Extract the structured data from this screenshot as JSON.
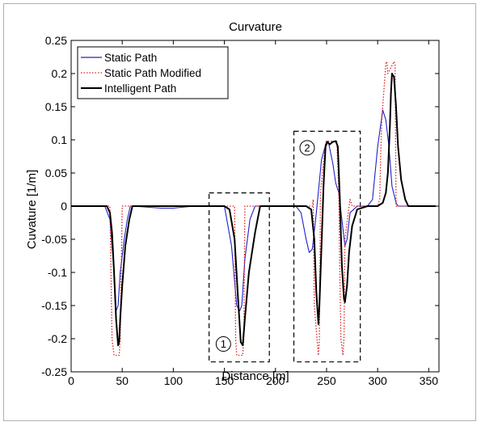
{
  "chart_data": {
    "type": "line",
    "title": "Curvature",
    "xlabel": "Distance [m]",
    "ylabel": "Cuvature [1/m]",
    "xlim": [
      0,
      360
    ],
    "ylim": [
      -0.25,
      0.25
    ],
    "xticks": [
      0,
      50,
      100,
      150,
      200,
      250,
      300,
      350
    ],
    "yticks": [
      -0.25,
      -0.2,
      -0.15,
      -0.1,
      -0.05,
      0,
      0.05,
      0.1,
      0.15,
      0.2,
      0.25
    ],
    "grid": false,
    "legend": "top-left",
    "series": [
      {
        "name": "Static Path",
        "color": "#2020c8",
        "style": "solid",
        "x": [
          0,
          10,
          33,
          38,
          42,
          44,
          46,
          48,
          52,
          55,
          58,
          60,
          88,
          100,
          120,
          130,
          150,
          157,
          162,
          165,
          167,
          170,
          175,
          180,
          200,
          220,
          225,
          230,
          233,
          236,
          240,
          245,
          250,
          252,
          256,
          259,
          262,
          265,
          268,
          270,
          273,
          280,
          290,
          295,
          300,
          305,
          308,
          311,
          314,
          318,
          320,
          325,
          350,
          357
        ],
        "y": [
          0,
          0,
          0,
          -0.02,
          -0.1,
          -0.158,
          -0.15,
          -0.1,
          -0.05,
          -0.02,
          0,
          0,
          -0.003,
          -0.003,
          0,
          0,
          0,
          -0.06,
          -0.15,
          -0.158,
          -0.15,
          -0.08,
          -0.02,
          0,
          0,
          0,
          -0.01,
          -0.05,
          -0.07,
          -0.065,
          -0.01,
          0.07,
          0.098,
          0.095,
          0.065,
          0.035,
          0.02,
          -0.02,
          -0.06,
          -0.05,
          -0.01,
          0,
          0,
          0.01,
          0.09,
          0.145,
          0.13,
          0.09,
          0.03,
          0.005,
          0,
          0,
          0,
          0
        ]
      },
      {
        "name": "Static Path Modified",
        "color": "#e02020",
        "style": "dotted",
        "x": [
          0,
          38,
          40,
          42,
          47,
          48,
          50,
          60,
          100,
          120,
          150,
          160,
          161,
          162,
          168,
          169,
          170,
          200,
          220,
          236,
          237,
          238,
          242,
          243,
          244,
          249,
          250,
          260,
          261,
          262,
          263,
          264,
          266,
          267,
          268,
          272,
          273,
          274,
          275,
          290,
          300,
          301,
          302,
          303,
          304,
          308,
          309,
          310,
          316,
          317,
          318,
          350,
          357
        ],
        "y": [
          0,
          0,
          -0.2,
          -0.225,
          -0.225,
          -0.2,
          0,
          0,
          0,
          0,
          0,
          0,
          -0.2,
          -0.225,
          -0.225,
          -0.2,
          0,
          0,
          0,
          0,
          0.01,
          -0.15,
          -0.225,
          -0.2,
          0.02,
          0.095,
          0.098,
          0.098,
          0.06,
          0.02,
          -0.1,
          -0.2,
          -0.225,
          -0.2,
          -0.05,
          0,
          0.01,
          0.005,
          0,
          0,
          0,
          0.005,
          0.01,
          0.08,
          0.13,
          0.215,
          0.218,
          0.2,
          0.218,
          0.215,
          0,
          0,
          0
        ]
      },
      {
        "name": "Intelligent Path",
        "color": "#000000",
        "style": "solid",
        "x": [
          0,
          35,
          38,
          40,
          42,
          44,
          46,
          47,
          48,
          50,
          53,
          57,
          60,
          100,
          150,
          155,
          160,
          163,
          166,
          168,
          170,
          174,
          180,
          185,
          200,
          230,
          235,
          238,
          240,
          242,
          243,
          245,
          247,
          249,
          251,
          253,
          256,
          259,
          261,
          263,
          265,
          267,
          268,
          270,
          272,
          275,
          280,
          290,
          300,
          305,
          308,
          310,
          312,
          313,
          314,
          316,
          318,
          320,
          323,
          327,
          330,
          357
        ],
        "y": [
          0,
          0,
          -0.01,
          -0.04,
          -0.1,
          -0.17,
          -0.21,
          -0.205,
          -0.17,
          -0.12,
          -0.06,
          -0.02,
          0,
          0,
          0,
          -0.005,
          -0.05,
          -0.13,
          -0.205,
          -0.21,
          -0.17,
          -0.1,
          -0.04,
          0,
          0,
          0,
          -0.005,
          -0.05,
          -0.13,
          -0.178,
          -0.15,
          -0.06,
          0.03,
          0.09,
          0.097,
          0.093,
          0.097,
          0.098,
          0.09,
          0.01,
          -0.09,
          -0.14,
          -0.145,
          -0.12,
          -0.07,
          -0.03,
          -0.005,
          0,
          0,
          0.005,
          0.02,
          0.05,
          0.12,
          0.17,
          0.2,
          0.195,
          0.15,
          0.09,
          0.04,
          0.01,
          0,
          0
        ]
      }
    ],
    "annotations": [
      {
        "label": "1",
        "box": {
          "x0": 135,
          "x1": 194,
          "y0": -0.235,
          "y1": 0.02
        },
        "label_at": {
          "x": 149,
          "y": -0.208
        }
      },
      {
        "label": "2",
        "box": {
          "x0": 218,
          "x1": 283,
          "y0": -0.235,
          "y1": 0.113
        },
        "label_at": {
          "x": 231,
          "y": 0.088
        }
      }
    ]
  }
}
